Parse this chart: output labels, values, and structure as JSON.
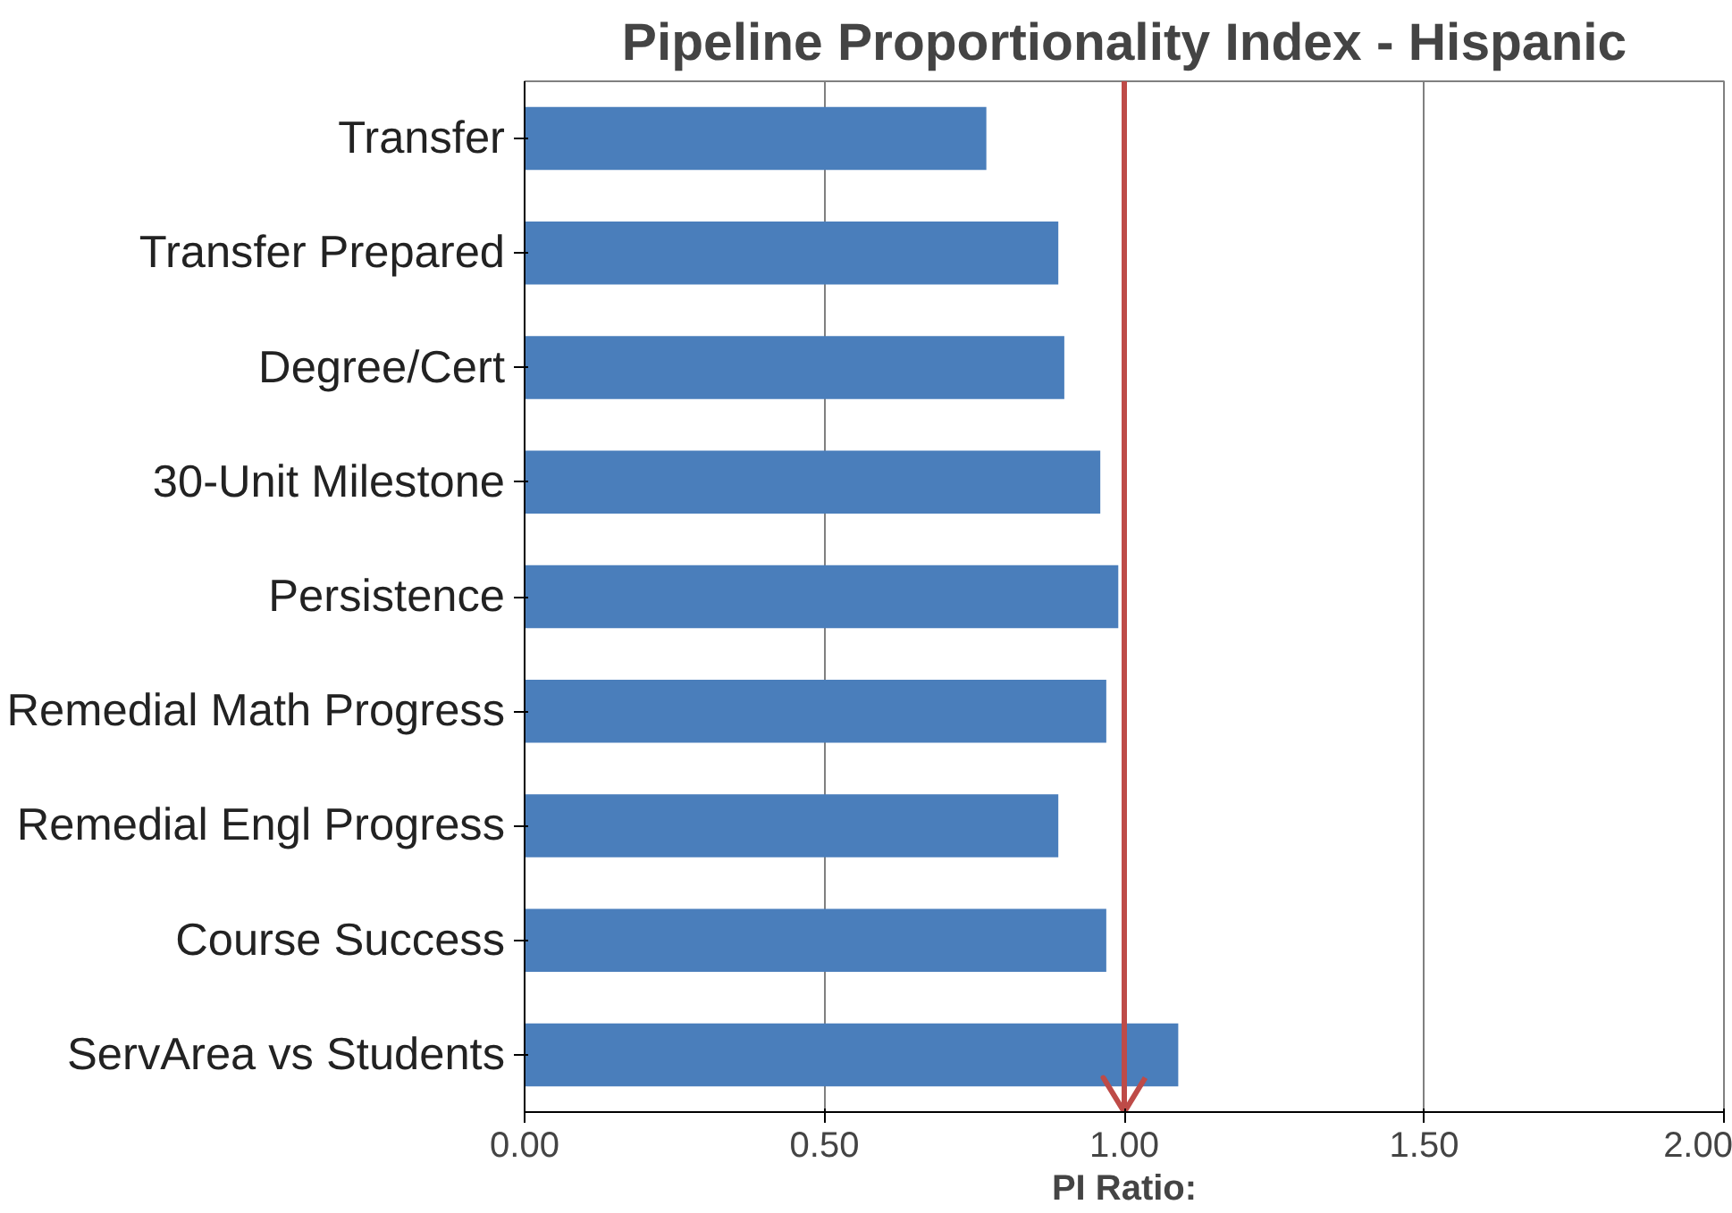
{
  "chart_data": {
    "type": "bar",
    "orientation": "horizontal",
    "title": "Pipeline Proportionality Index - Hispanic",
    "xlabel": "PI Ratio:",
    "categories": [
      "Transfer",
      "Transfer Prepared",
      "Degree/Cert",
      "30-Unit Milestone",
      "Persistence",
      "Remedial Math Progress",
      "Remedial Engl Progress",
      "Course Success",
      "ServArea vs Students"
    ],
    "values": [
      0.77,
      0.89,
      0.9,
      0.96,
      0.99,
      0.97,
      0.89,
      0.97,
      1.09
    ],
    "color": "#4a7ebb",
    "xlim": [
      0,
      2
    ],
    "xticks": [
      {
        "value": 0,
        "label": "0.00"
      },
      {
        "value": 0.5,
        "label": "0.50"
      },
      {
        "value": 1,
        "label": "1.00"
      },
      {
        "value": 1.5,
        "label": "1.50"
      },
      {
        "value": 2,
        "label": "2.00"
      }
    ],
    "grid": "x",
    "ref_lines": [
      {
        "axis": "x",
        "value": 1,
        "color": "#be4b48",
        "line_style": "solid"
      }
    ]
  }
}
